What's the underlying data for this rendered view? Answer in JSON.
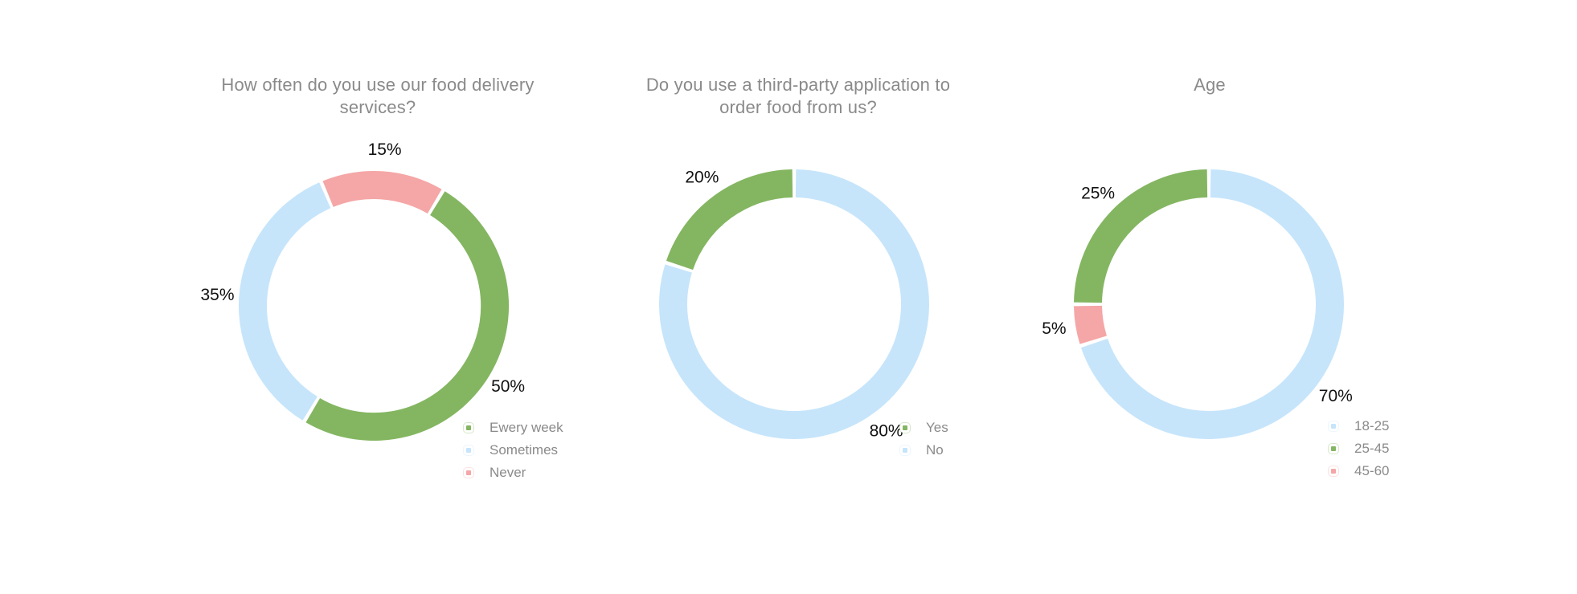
{
  "colors": {
    "green": "#84b661",
    "light_blue": "#c6e5fb",
    "pink": "#f5a6a6",
    "title_text": "#8a8a8a",
    "label_text": "#111111"
  },
  "chart_data": [
    {
      "type": "pie",
      "style": "donut",
      "title_lines": [
        "How often do you use our food delivery",
        "services?"
      ],
      "slices": [
        {
          "label": "Ewery week",
          "value": 50,
          "value_label": "50%",
          "color": "#84b661"
        },
        {
          "label": "Sometimes",
          "value": 35,
          "value_label": "35%",
          "color": "#c6e5fb"
        },
        {
          "label": "Never",
          "value": 15,
          "value_label": "15%",
          "color": "#f5a6a6"
        }
      ],
      "legend_order": [
        "Ewery week",
        "Sometimes",
        "Never"
      ],
      "legend_placement": "bottom-right"
    },
    {
      "type": "pie",
      "style": "donut",
      "title_lines": [
        "Do you use a third-party application to",
        "order food from us?"
      ],
      "slices": [
        {
          "label": "No",
          "value": 80,
          "value_label": "80%",
          "color": "#c6e5fb"
        },
        {
          "label": "Yes",
          "value": 20,
          "value_label": "20%",
          "color": "#84b661"
        }
      ],
      "legend_order": [
        "Yes",
        "No"
      ],
      "legend_placement": "bottom-right"
    },
    {
      "type": "pie",
      "style": "donut",
      "title_lines": [
        "Age"
      ],
      "slices": [
        {
          "label": "18-25",
          "value": 70,
          "value_label": "70%",
          "color": "#c6e5fb"
        },
        {
          "label": "45-60",
          "value": 5,
          "value_label": "5%",
          "color": "#f5a6a6"
        },
        {
          "label": "25-45",
          "value": 25,
          "value_label": "25%",
          "color": "#84b661"
        }
      ],
      "legend_order": [
        "18-25",
        "25-45",
        "45-60"
      ],
      "legend_placement": "bottom-right"
    }
  ]
}
